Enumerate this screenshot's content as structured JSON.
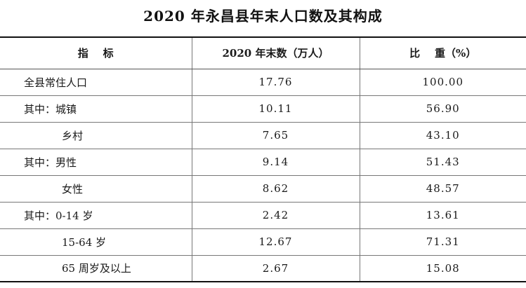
{
  "title": "2020 年永昌县年末人口数及其构成",
  "headers": [
    "指    标",
    "2020 年末数（万人）",
    "比    重（%）"
  ],
  "rows": [
    {
      "label": "全县常住人口",
      "value": "17.76",
      "share": "100.00",
      "indent": false
    },
    {
      "label": "其中：城镇",
      "value": "10.11",
      "share": "56.90",
      "indent": false
    },
    {
      "label": "乡村",
      "value": "7.65",
      "share": "43.10",
      "indent": true
    },
    {
      "label": "其中：男性",
      "value": "9.14",
      "share": "51.43",
      "indent": false
    },
    {
      "label": "女性",
      "value": "8.62",
      "share": "48.57",
      "indent": true
    },
    {
      "label": "其中：0-14 岁",
      "value": "2.42",
      "share": "13.61",
      "indent": false
    },
    {
      "label": "15-64 岁",
      "value": "12.67",
      "share": "71.31",
      "indent": true
    },
    {
      "label": "65 周岁及以上",
      "value": "2.67",
      "share": "15.08",
      "indent": true
    }
  ]
}
